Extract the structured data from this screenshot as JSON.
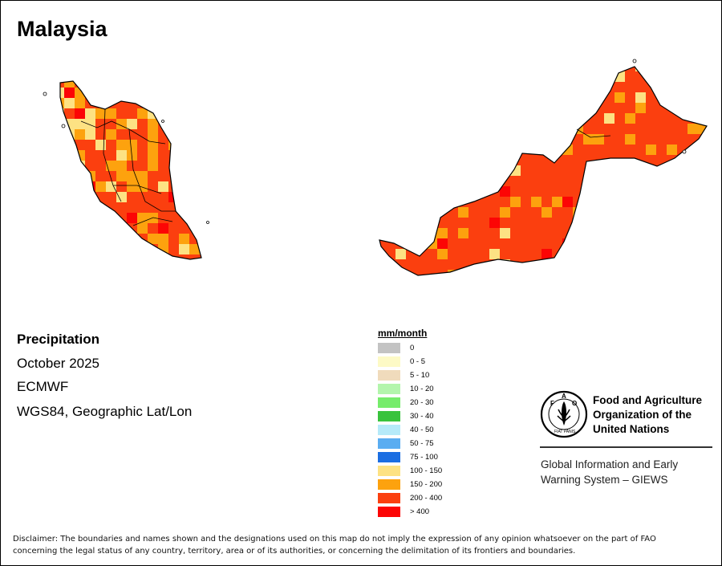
{
  "title": "Malaysia",
  "info": {
    "variable": "Precipitation",
    "period": "October 2025",
    "source": "ECMWF",
    "projection": "WGS84, Geographic Lat/Lon"
  },
  "legend": {
    "title": "mm/month",
    "items": [
      {
        "label": "0",
        "color": "#c3c3c3"
      },
      {
        "label": "0 - 5",
        "color": "#fdfac6"
      },
      {
        "label": "5 - 10",
        "color": "#f0dbbc"
      },
      {
        "label": "10 - 20",
        "color": "#b3f5ac"
      },
      {
        "label": "20 - 30",
        "color": "#76ec6b"
      },
      {
        "label": "30 - 40",
        "color": "#39c33d"
      },
      {
        "label": "40 - 50",
        "color": "#b5eaf9"
      },
      {
        "label": "50 - 75",
        "color": "#5aadf1"
      },
      {
        "label": "75 - 100",
        "color": "#1b6ee2"
      },
      {
        "label": "100 - 150",
        "color": "#fde283"
      },
      {
        "label": "150 - 200",
        "color": "#fda20e"
      },
      {
        "label": "200 - 400",
        "color": "#fb3f0f"
      },
      {
        "label": "> 400",
        "color": "#fc0505"
      }
    ]
  },
  "fao": {
    "org_line1": "Food and Agriculture",
    "org_line2": "Organization of the",
    "org_line3": "United Nations",
    "logo_letters": "FAO",
    "logo_motto": "FIAT PANIS",
    "giews_line1": "Global Information and Early",
    "giews_line2": "Warning System – GIEWS"
  },
  "disclaimer_line1": "Disclaimer: The boundaries and names shown and the designations used on this map do not imply the expression of any opinion whatsoever on the part of FAO",
  "disclaimer_line2": "concerning the legal status of any country, territory, area or of its authorities, or concerning the delimitation of its frontiers and boundaries.",
  "map": {
    "dominant_class": "200 - 400",
    "secondary_classes": [
      "150 - 200",
      "100 - 150",
      "> 400"
    ]
  }
}
